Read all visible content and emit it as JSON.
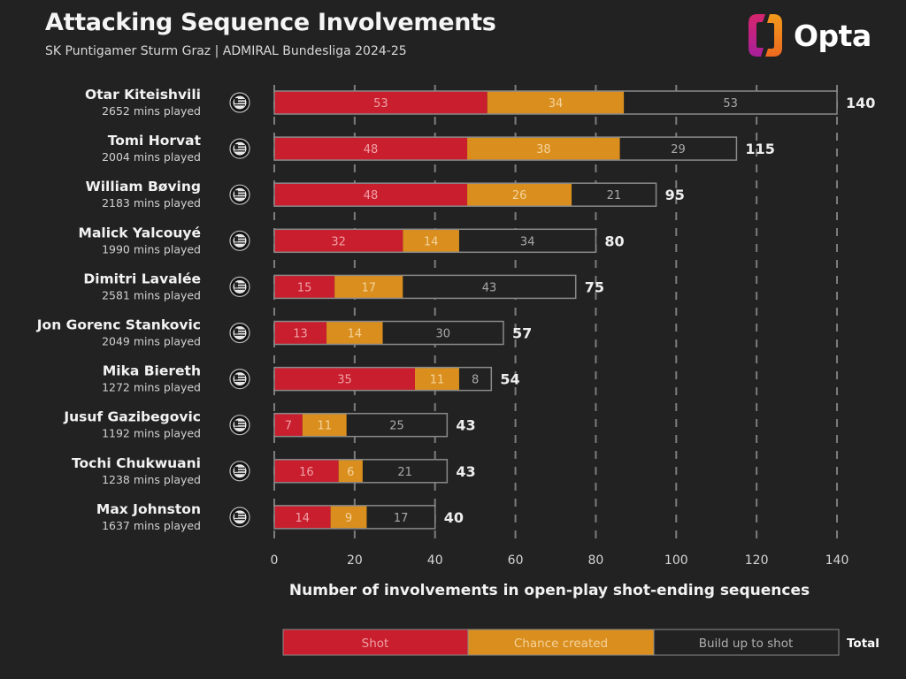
{
  "header": {
    "title": "Attacking Sequence Involvements",
    "subtitle": "SK Puntigamer Sturm Graz | ADMIRAL Bundesliga 2024-25",
    "logo_text": "Opta",
    "logo_icon": "opta-logo-icon"
  },
  "colors": {
    "background": "#222222",
    "shot": "#c81e2d",
    "chance_created": "#d98e1e",
    "build_up": "#222222",
    "bar_outline": "#8a8a8a",
    "grid": "#8c8c8c",
    "shot_text": "#f0a0a6",
    "chance_text": "#f5d39a",
    "build_text": "#a8a8a8"
  },
  "chart_data": {
    "type": "bar",
    "orientation": "horizontal",
    "stacked": true,
    "title": "Attacking Sequence Involvements",
    "subtitle": "SK Puntigamer Sturm Graz | ADMIRAL Bundesliga 2024-25",
    "xlabel": "Number of involvements in open-play shot-ending sequences",
    "ylabel": "",
    "xlim": [
      0,
      140
    ],
    "xticks": [
      0,
      20,
      40,
      60,
      80,
      100,
      120,
      140
    ],
    "grid": "vertical dashed",
    "legend": {
      "position": "bottom",
      "entries": [
        "Shot",
        "Chance created",
        "Build up to shot"
      ],
      "total_label": "Total"
    },
    "categories": [
      "Otar Kiteishvili",
      "Tomi Horvat",
      "William Bøving",
      "Malick Yalcouyé",
      "Dimitri Lavalée",
      "Jon Gorenc Stankovic",
      "Mika Biereth",
      "Jusuf Gazibegovic",
      "Tochi Chukwuani",
      "Max Johnston"
    ],
    "minutes": [
      "2652 mins played",
      "2004 mins played",
      "2183 mins played",
      "1990 mins played",
      "2581 mins played",
      "2049 mins played",
      "1272 mins played",
      "1192 mins played",
      "1238 mins played",
      "1637 mins played"
    ],
    "series": [
      {
        "name": "Shot",
        "values": [
          53,
          48,
          48,
          32,
          15,
          13,
          35,
          7,
          16,
          14
        ]
      },
      {
        "name": "Chance created",
        "values": [
          34,
          38,
          26,
          14,
          17,
          14,
          11,
          11,
          6,
          9
        ]
      },
      {
        "name": "Build up to shot",
        "values": [
          53,
          29,
          21,
          34,
          43,
          30,
          8,
          25,
          21,
          17
        ]
      }
    ],
    "totals": [
      140,
      115,
      95,
      80,
      75,
      57,
      54,
      43,
      43,
      40
    ]
  }
}
